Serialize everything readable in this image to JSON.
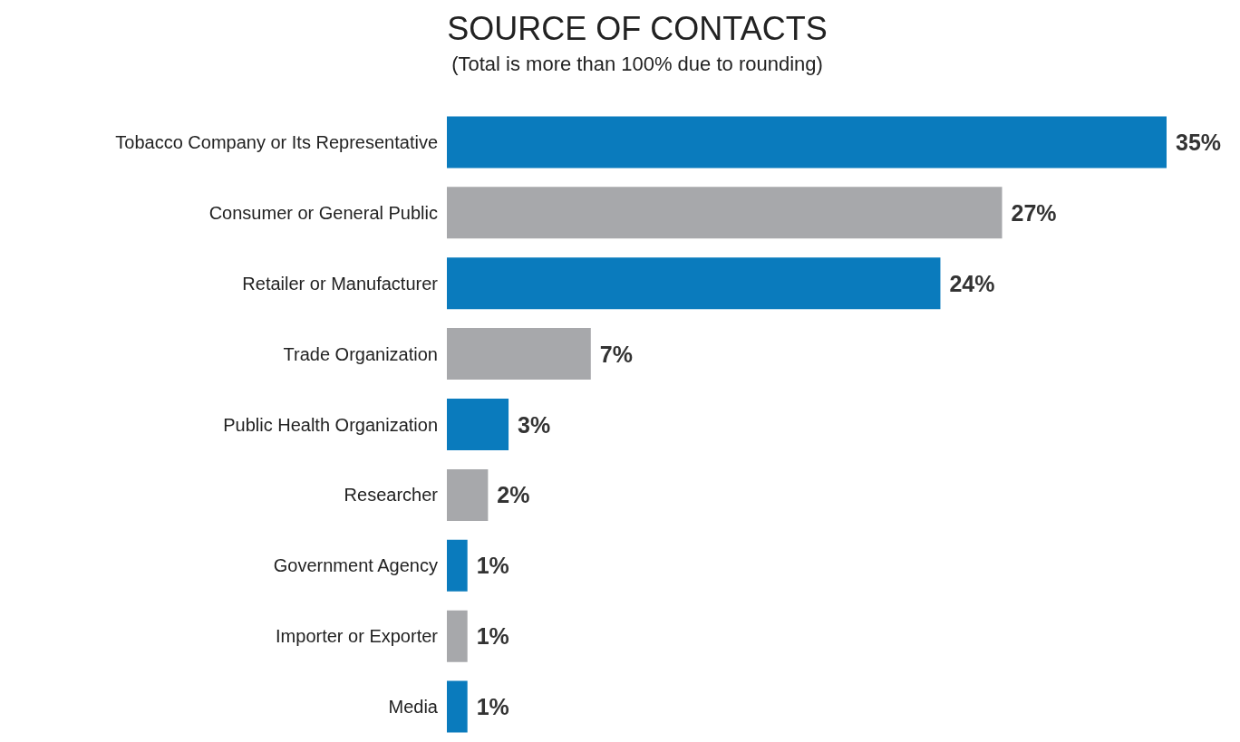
{
  "chart_data": {
    "type": "bar",
    "orientation": "horizontal",
    "title": "SOURCE OF CONTACTS",
    "subtitle": "(Total is more than 100% due to rounding)",
    "categories": [
      "Tobacco Company or Its Representative",
      "Consumer or General Public",
      "Retailer or Manufacturer",
      "Trade Organization",
      "Public Health Organization",
      "Researcher",
      "Government Agency",
      "Importer or Exporter",
      "Media"
    ],
    "values": [
      35,
      27,
      24,
      7,
      3,
      2,
      1,
      1,
      1
    ],
    "colors": [
      "#0a7bbd",
      "#a7a8ab",
      "#0a7bbd",
      "#a7a8ab",
      "#0a7bbd",
      "#a7a8ab",
      "#0a7bbd",
      "#a7a8ab",
      "#0a7bbd"
    ],
    "value_labels": [
      "35%",
      "27%",
      "24%",
      "7%",
      "3%",
      "2%",
      "1%",
      "1%",
      "1%"
    ],
    "tick_labels": "y"
  }
}
